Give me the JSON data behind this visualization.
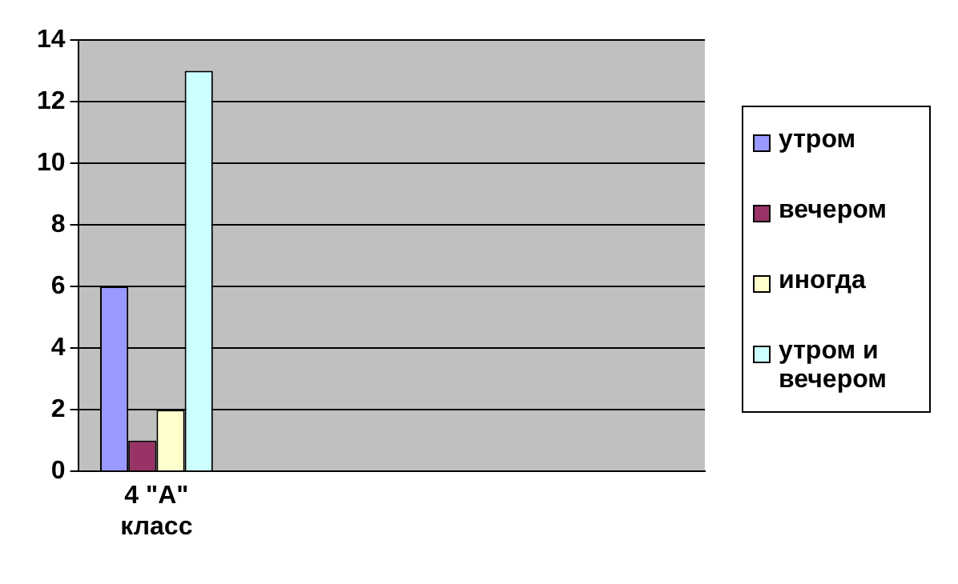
{
  "chart_data": {
    "type": "bar",
    "categories": [
      "4 \"A\" класс",
      null,
      null,
      null
    ],
    "series": [
      {
        "name": "утром",
        "color": "#9999ff",
        "values": [
          6,
          null,
          null,
          null
        ]
      },
      {
        "name": "вечером",
        "color": "#993366",
        "values": [
          1,
          null,
          null,
          null
        ]
      },
      {
        "name": "иногда",
        "color": "#ffffcc",
        "values": [
          2,
          null,
          null,
          null
        ]
      },
      {
        "name": "утром и вечером",
        "color": "#ccffff",
        "values": [
          13,
          null,
          null,
          null
        ]
      }
    ],
    "ylim": [
      0,
      14
    ],
    "yticks": [
      0,
      2,
      4,
      6,
      8,
      10,
      12,
      14
    ],
    "grid": "y",
    "legend": "right"
  }
}
